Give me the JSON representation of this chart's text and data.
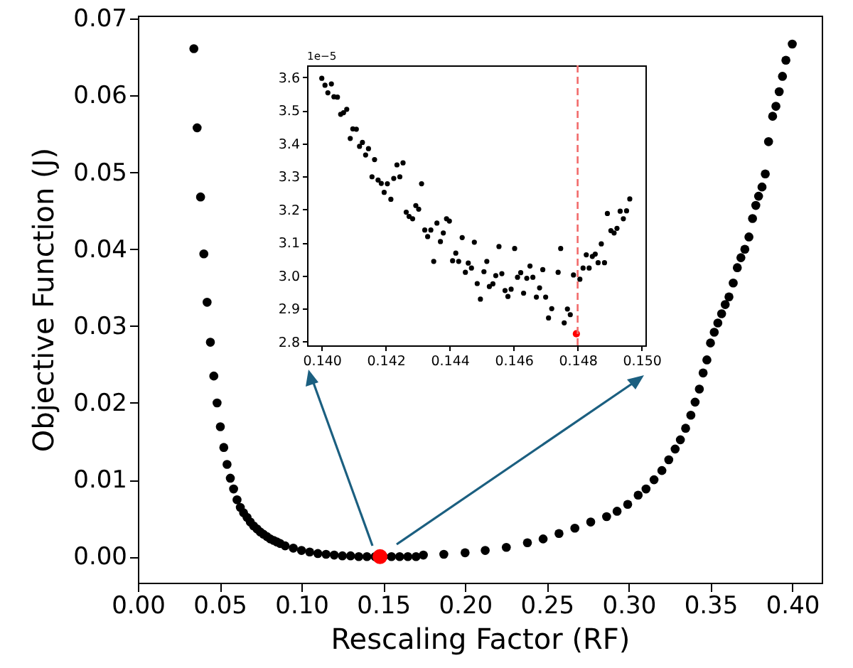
{
  "chart_data": [
    {
      "type": "scatter",
      "xlabel": "Rescaling Factor (RF)",
      "ylabel": "Objective Function (J)",
      "marker": "circle",
      "xlim": [
        0,
        0.418
      ],
      "ylim": [
        -0.0034,
        0.0704
      ],
      "xticks": [
        {
          "value": 0,
          "label": "0.00"
        },
        {
          "value": 0.05,
          "label": "0.05"
        },
        {
          "value": 0.1,
          "label": "0.10"
        },
        {
          "value": 0.15,
          "label": "0.15"
        },
        {
          "value": 0.2,
          "label": "0.20"
        },
        {
          "value": 0.25,
          "label": "0.25"
        },
        {
          "value": 0.3,
          "label": "0.30"
        },
        {
          "value": 0.35,
          "label": "0.35"
        },
        {
          "value": 0.4,
          "label": "0.40"
        }
      ],
      "yticks": [
        {
          "value": 0,
          "label": "0.00"
        },
        {
          "value": 0.01,
          "label": "0.01"
        },
        {
          "value": 0.02,
          "label": "0.02"
        },
        {
          "value": 0.03,
          "label": "0.03"
        },
        {
          "value": 0.04,
          "label": "0.04"
        },
        {
          "value": 0.05,
          "label": "0.05"
        },
        {
          "value": 0.06,
          "label": "0.06"
        },
        {
          "value": 0.07,
          "label": "0.07"
        }
      ],
      "series": [
        {
          "color": "#000000",
          "x": [
            0.0342,
            0.0362,
            0.0383,
            0.0403,
            0.0423,
            0.0443,
            0.0464,
            0.0484,
            0.0504,
            0.0525,
            0.0545,
            0.0565,
            0.0585,
            0.0606,
            0.0626,
            0.0646,
            0.0667,
            0.0687,
            0.0707,
            0.0728,
            0.0748,
            0.0768,
            0.0789,
            0.0809,
            0.083,
            0.085,
            0.087,
            0.09,
            0.095,
            0.1,
            0.105,
            0.11,
            0.115,
            0.12,
            0.125,
            0.13,
            0.135,
            0.14,
            0.145,
            0.15,
            0.155,
            0.16,
            0.165,
            0.17,
            0.1745,
            0.187,
            0.2,
            0.2123,
            0.2252,
            0.2381,
            0.2477,
            0.2574,
            0.2671,
            0.2768,
            0.2865,
            0.2929,
            0.2994,
            0.3058,
            0.3106,
            0.3155,
            0.3203,
            0.3245,
            0.3284,
            0.3316,
            0.3348,
            0.338,
            0.3406,
            0.3432,
            0.3455,
            0.3478,
            0.35,
            0.3523,
            0.3545,
            0.3568,
            0.359,
            0.3613,
            0.3639,
            0.3664,
            0.3686,
            0.371,
            0.3735,
            0.3757,
            0.3777,
            0.3794,
            0.3815,
            0.3835,
            0.3855,
            0.388,
            0.39,
            0.392,
            0.394,
            0.3961,
            0.4
          ],
          "values": [
            0.0661,
            0.0558,
            0.0468,
            0.0394,
            0.0331,
            0.0279,
            0.0235,
            0.02,
            0.0169,
            0.0142,
            0.012,
            0.0102,
            0.0088,
            0.0074,
            0.0064,
            0.0057,
            0.0051,
            0.0045,
            0.004,
            0.0036,
            0.0032,
            0.0029,
            0.0026,
            0.0023,
            0.0021,
            0.0019,
            0.0017,
            0.0014,
            0.0011,
            0.0008,
            0.0006,
            0.0004,
            0.0003,
            0.0002,
            0.0001,
            0.0001,
            0,
            0,
            0,
            0,
            0,
            0,
            0,
            0,
            0.0002,
            0.0003,
            0.0005,
            0.0008,
            0.0012,
            0.0018,
            0.0023,
            0.003,
            0.0037,
            0.0045,
            0.0052,
            0.0059,
            0.0068,
            0.008,
            0.0088,
            0.01,
            0.0112,
            0.0126,
            0.014,
            0.0152,
            0.0167,
            0.0184,
            0.0201,
            0.0218,
            0.0239,
            0.0256,
            0.0278,
            0.0292,
            0.0304,
            0.0316,
            0.0328,
            0.0338,
            0.0356,
            0.0376,
            0.0389,
            0.04,
            0.0416,
            0.044,
            0.0457,
            0.0469,
            0.0481,
            0.0498,
            0.054,
            0.0573,
            0.0586,
            0.0605,
            0.0625,
            0.0646,
            0.0667
          ]
        },
        {
          "color": "#ff0000",
          "x": [
            0.148
          ],
          "values": [
            0
          ]
        }
      ]
    },
    {
      "type": "scatter",
      "marker": "circle",
      "annotations": [
        "1e−5"
      ],
      "xlim": [
        0.13954,
        0.15012
      ],
      "ylim": [
        2.789,
        3.636
      ],
      "xticks": [
        {
          "value": 0.14,
          "label": "0.140"
        },
        {
          "value": 0.142,
          "label": "0.142"
        },
        {
          "value": 0.144,
          "label": "0.144"
        },
        {
          "value": 0.146,
          "label": "0.146"
        },
        {
          "value": 0.148,
          "label": "0.148"
        },
        {
          "value": 0.15,
          "label": "0.150"
        }
      ],
      "yticks": [
        2.8,
        2.9,
        {
          "value": 3.0,
          "label": "3.0"
        },
        3.1,
        3.2,
        3.3,
        3.4,
        3.5,
        3.6
      ],
      "ref_lines": [
        {
          "axis": "x",
          "value": 0.148,
          "color": "#f26b6b",
          "line_style": "dashed"
        }
      ],
      "series": [
        {
          "color": "#000000",
          "x": [
            0.14,
            0.1401,
            0.14019,
            0.1403,
            0.14038,
            0.14049,
            0.14059,
            0.14068,
            0.14078,
            0.14089,
            0.14097,
            0.14108,
            0.14118,
            0.14127,
            0.14137,
            0.14146,
            0.14157,
            0.14165,
            0.14176,
            0.14186,
            0.14195,
            0.14205,
            0.14216,
            0.14225,
            0.14235,
            0.14244,
            0.14254,
            0.14264,
            0.14273,
            0.14284,
            0.14294,
            0.14303,
            0.14312,
            0.14322,
            0.14331,
            0.14341,
            0.1435,
            0.1436,
            0.14371,
            0.1438,
            0.1439,
            0.14399,
            0.14409,
            0.14419,
            0.14428,
            0.14439,
            0.14449,
            0.14458,
            0.14468,
            0.14477,
            0.14486,
            0.14496,
            0.14507,
            0.14516,
            0.14524,
            0.14535,
            0.14544,
            0.14554,
            0.14563,
            0.14573,
            0.14582,
            0.14592,
            0.14603,
            0.14612,
            0.14622,
            0.14631,
            0.14641,
            0.14651,
            0.1466,
            0.14671,
            0.14681,
            0.14691,
            0.147,
            0.14709,
            0.14719,
            0.14739,
            0.14747,
            0.14758,
            0.14768,
            0.14777,
            0.14787,
            0.14807,
            0.14817,
            0.14827,
            0.14836,
            0.14846,
            0.14855,
            0.14864,
            0.14874,
            0.14884,
            0.14893,
            0.14904,
            0.14914,
            0.14923,
            0.14933,
            0.14943,
            0.14953,
            0.14963
          ],
          "values": [
            3.597,
            3.576,
            3.553,
            3.58,
            3.541,
            3.54,
            3.488,
            3.493,
            3.503,
            3.415,
            3.444,
            3.443,
            3.391,
            3.403,
            3.365,
            3.384,
            3.299,
            3.351,
            3.289,
            3.279,
            3.252,
            3.278,
            3.231,
            3.294,
            3.335,
            3.299,
            3.341,
            3.192,
            3.179,
            3.172,
            3.212,
            3.201,
            3.278,
            3.138,
            3.118,
            3.138,
            3.043,
            3.159,
            3.103,
            3.129,
            3.172,
            3.165,
            3.045,
            3.068,
            3.043,
            3.115,
            3.01,
            3.038,
            3.023,
            3.101,
            2.976,
            2.929,
            3.012,
            3.043,
            2.967,
            2.975,
            3.0,
            3.088,
            3.006,
            2.955,
            2.937,
            2.959,
            3.082,
            2.995,
            3.009,
            2.947,
            2.992,
            3.029,
            2.995,
            2.935,
            2.963,
            3.018,
            2.935,
            2.872,
            2.9,
            3.01,
            3.082,
            2.857,
            2.899,
            2.882,
            3.002,
            2.989,
            3.023,
            3.063,
            3.023,
            3.058,
            3.065,
            3.039,
            3.096,
            3.039,
            3.188,
            3.136,
            3.129,
            3.143,
            3.195,
            3.172,
            3.196,
            3.232
          ]
        },
        {
          "color": "#ff0000",
          "x": [
            0.14796
          ],
          "values": [
            2.824
          ]
        }
      ]
    }
  ]
}
